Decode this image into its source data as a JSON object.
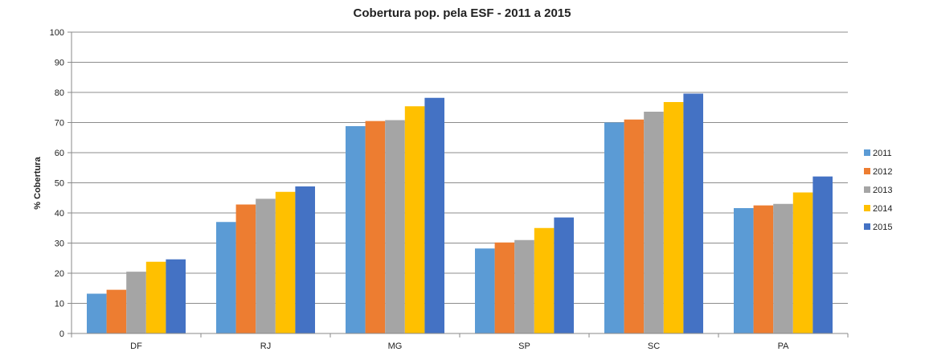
{
  "chart_data": {
    "type": "bar",
    "title": "Cobertura pop. pela ESF  - 2011 a 2015",
    "xlabel": "",
    "ylabel": "% Cobertura",
    "ylim": [
      0,
      100
    ],
    "yticks": [
      0,
      10,
      20,
      30,
      40,
      50,
      60,
      70,
      80,
      90,
      100
    ],
    "grid": true,
    "legend_position": "right",
    "categories": [
      "DF",
      "RJ",
      "MG",
      "SP",
      "SC",
      "PA"
    ],
    "series": [
      {
        "name": "2011",
        "color": "#5b9bd5",
        "values": [
          13.2,
          37.0,
          68.8,
          28.2,
          70.0,
          41.6
        ]
      },
      {
        "name": "2012",
        "color": "#ed7d31",
        "values": [
          14.5,
          42.8,
          70.5,
          30.2,
          71.0,
          42.5
        ]
      },
      {
        "name": "2013",
        "color": "#a5a5a5",
        "values": [
          20.5,
          44.7,
          70.8,
          31.0,
          73.6,
          43.0
        ]
      },
      {
        "name": "2014",
        "color": "#ffc000",
        "values": [
          23.8,
          47.0,
          75.4,
          35.0,
          76.8,
          46.8
        ]
      },
      {
        "name": "2015",
        "color": "#4472c4",
        "values": [
          24.6,
          48.8,
          78.2,
          38.5,
          79.6,
          52.1
        ]
      }
    ]
  }
}
